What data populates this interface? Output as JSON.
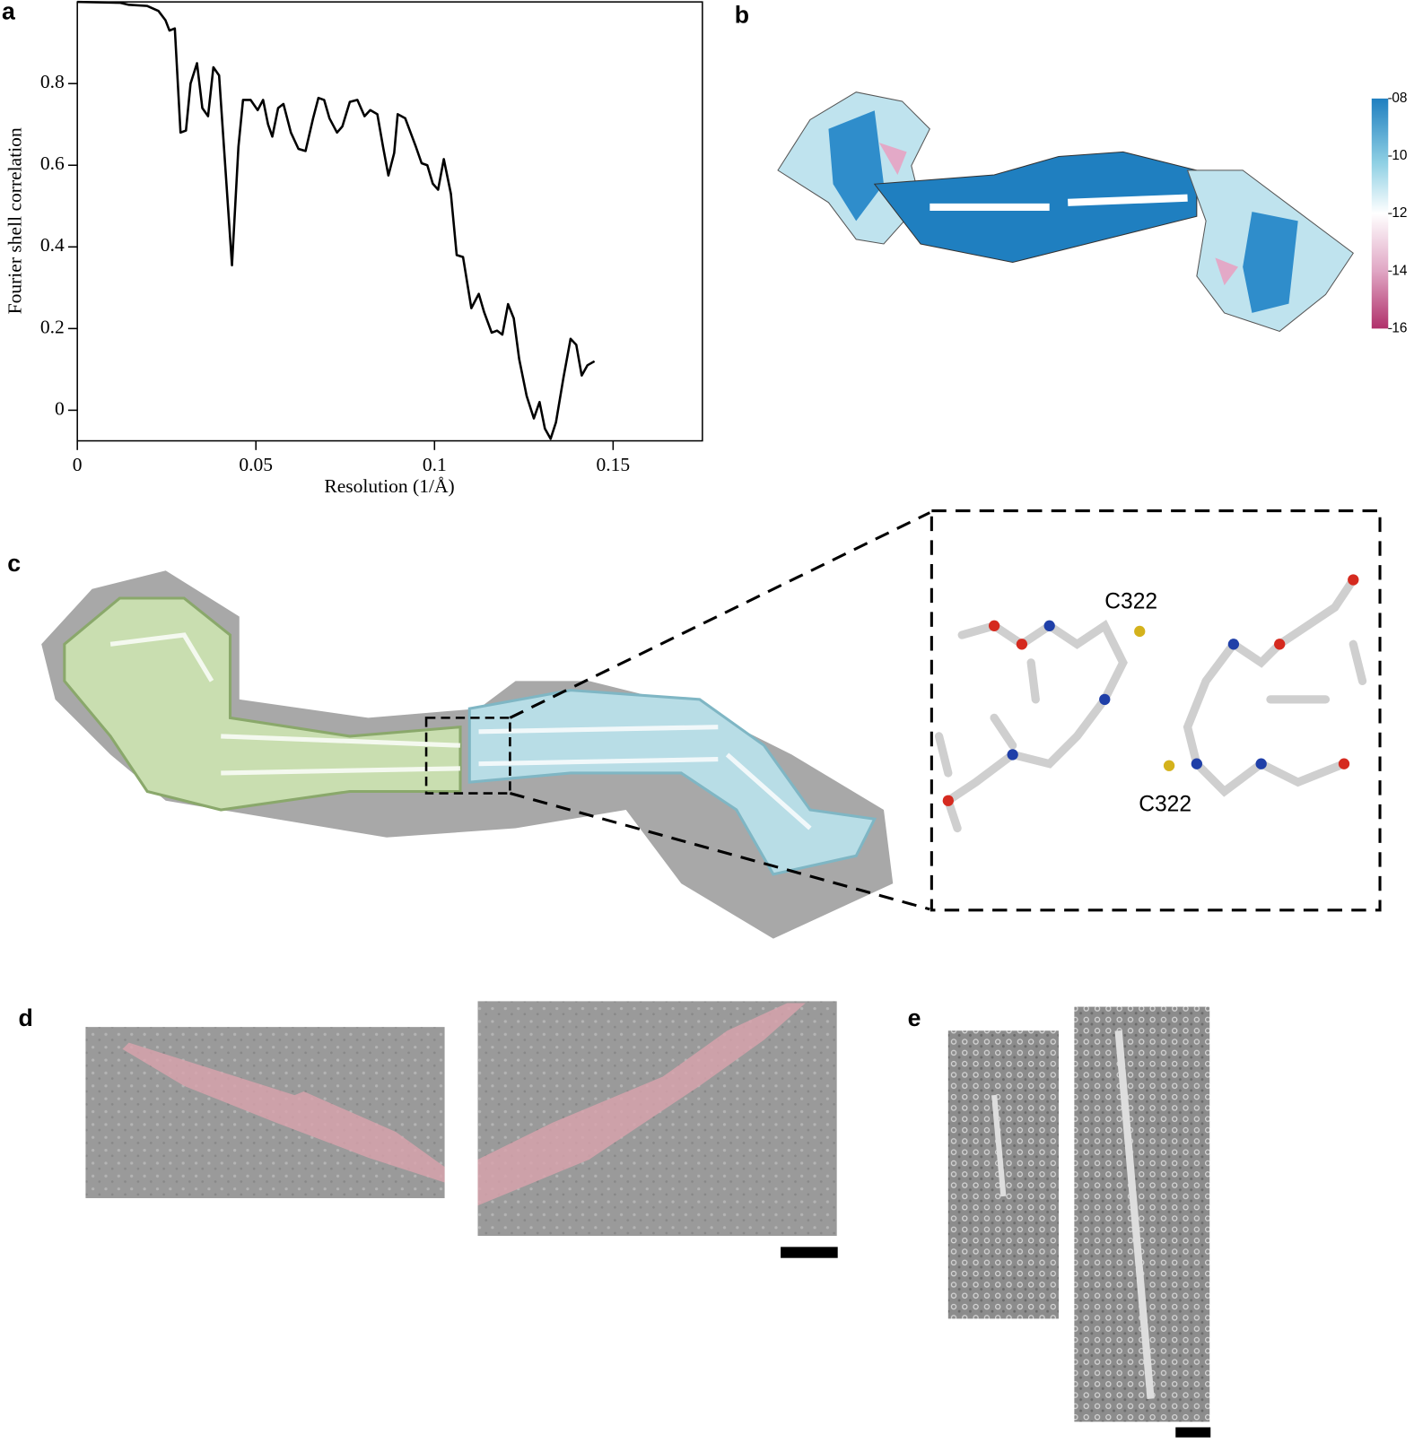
{
  "panel_labels": [
    "a",
    "b",
    "c",
    "d",
    "e"
  ],
  "chart_data": {
    "type": "line",
    "x_label": "Resolution (1/Å)",
    "y_label": "Fourier shell correlation",
    "color": "#000000",
    "x": [
      0,
      0.0119,
      0.0144,
      0.0196,
      0.0227,
      0.0247,
      0.0258,
      0.0273,
      0.0289,
      0.0304,
      0.0317,
      0.0335,
      0.035,
      0.0366,
      0.0381,
      0.0397,
      0.0433,
      0.0451,
      0.0464,
      0.0485,
      0.0505,
      0.052,
      0.0534,
      0.0546,
      0.0562,
      0.0577,
      0.0598,
      0.0619,
      0.0639,
      0.066,
      0.0675,
      0.0691,
      0.0706,
      0.0727,
      0.0742,
      0.0763,
      0.0784,
      0.0804,
      0.082,
      0.084,
      0.0856,
      0.0871,
      0.0887,
      0.0897,
      0.0918,
      0.0948,
      0.0964,
      0.098,
      0.0995,
      0.101,
      0.1026,
      0.1046,
      0.1062,
      0.108,
      0.1103,
      0.1124,
      0.1139,
      0.116,
      0.1175,
      0.119,
      0.1206,
      0.1222,
      0.1237,
      0.1258,
      0.1278,
      0.1294,
      0.1309,
      0.1325,
      0.134,
      0.1361,
      0.1381,
      0.1397,
      0.1412,
      0.1428,
      0.1448
    ],
    "values": [
      1.0,
      0.998,
      0.993,
      0.99,
      0.978,
      0.955,
      0.93,
      0.935,
      0.68,
      0.685,
      0.8,
      0.85,
      0.74,
      0.72,
      0.84,
      0.82,
      0.355,
      0.645,
      0.76,
      0.76,
      0.735,
      0.76,
      0.7,
      0.67,
      0.74,
      0.75,
      0.68,
      0.64,
      0.635,
      0.715,
      0.765,
      0.76,
      0.715,
      0.68,
      0.695,
      0.755,
      0.76,
      0.72,
      0.735,
      0.725,
      0.645,
      0.575,
      0.63,
      0.725,
      0.715,
      0.645,
      0.605,
      0.6,
      0.555,
      0.54,
      0.615,
      0.53,
      0.38,
      0.375,
      0.25,
      0.285,
      0.24,
      0.19,
      0.195,
      0.185,
      0.26,
      0.225,
      0.125,
      0.035,
      -0.02,
      0.02,
      -0.045,
      -0.07,
      -0.03,
      0.08,
      0.175,
      0.16,
      0.085,
      0.11,
      0.12
    ],
    "xlim": [
      0,
      0.175
    ],
    "ylim": [
      -0.075,
      1.0
    ],
    "xticks": [
      0,
      0.05,
      0.1,
      0.15
    ],
    "yticks": [
      0,
      0.2,
      0.4,
      0.6,
      0.8
    ]
  },
  "colorbar": {
    "range": [
      8,
      16
    ],
    "ticks": [
      {
        "value": 8,
        "label": "08"
      },
      10,
      12,
      14,
      16
    ]
  },
  "inset_labels": [
    "C322",
    "C322"
  ]
}
